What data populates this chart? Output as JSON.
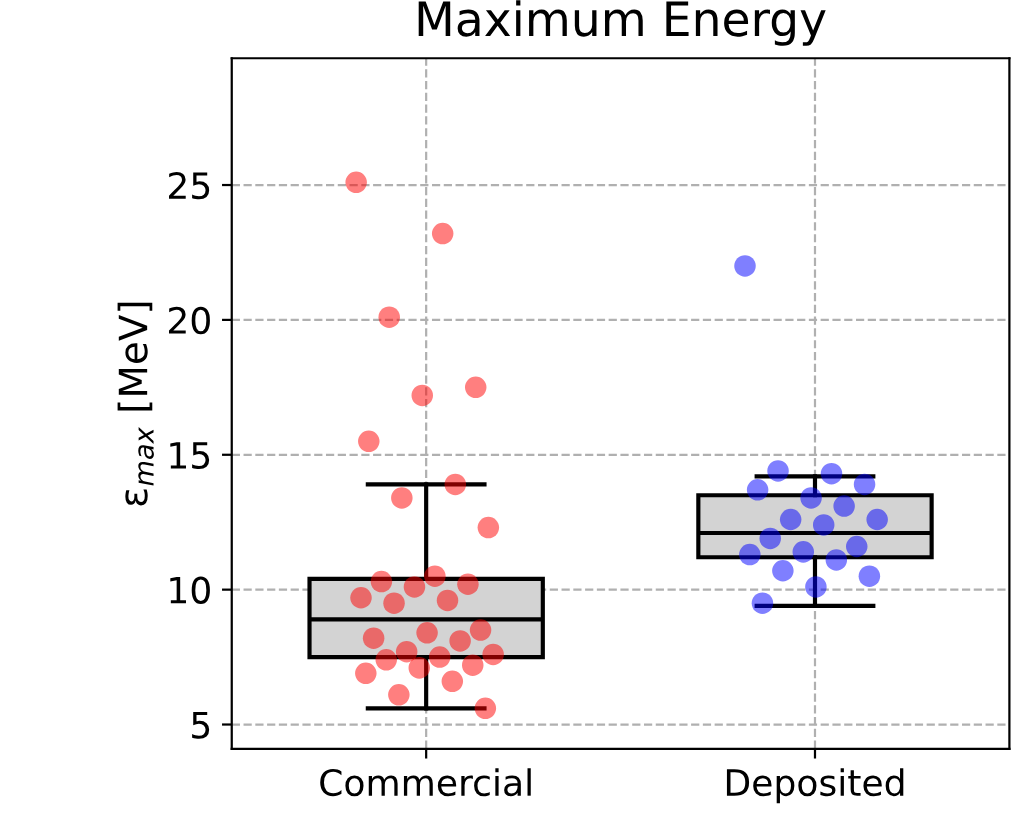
{
  "chart_data": {
    "type": "box",
    "title": "Maximum Energy",
    "ylabel": "ε$_{max}$ [MeV]",
    "categories": [
      "Commercial",
      "Deposited"
    ],
    "boxes": [
      {
        "low": 5.6,
        "q1": 7.5,
        "median": 8.9,
        "q3": 10.4,
        "high": 13.9
      },
      {
        "low": 9.4,
        "q1": 11.2,
        "median": 12.1,
        "q3": 13.5,
        "high": 14.2
      }
    ],
    "color": "#d3d3d3",
    "ylim": [
      4.1,
      29.7
    ],
    "yticks": [
      5,
      10,
      15,
      20,
      25
    ],
    "grid": true,
    "line_style": "dashed",
    "series": [
      {
        "type": "scatter",
        "color": "#ff0000",
        "x": [
          "Commercial",
          "Commercial",
          "Commercial",
          "Commercial",
          "Commercial",
          "Commercial",
          "Commercial",
          "Commercial",
          "Commercial",
          "Commercial",
          "Commercial",
          "Commercial",
          "Commercial",
          "Commercial",
          "Commercial",
          "Commercial",
          "Commercial",
          "Commercial",
          "Commercial",
          "Commercial",
          "Commercial",
          "Commercial",
          "Commercial",
          "Commercial",
          "Commercial",
          "Commercial",
          "Commercial",
          "Commercial",
          "Commercial",
          "Commercial"
        ],
        "values": [
          25.1,
          23.2,
          20.1,
          17.5,
          17.2,
          15.5,
          13.9,
          13.4,
          12.3,
          10.5,
          10.3,
          10.2,
          10.1,
          9.7,
          9.6,
          9.5,
          8.5,
          8.4,
          8.2,
          8.1,
          7.7,
          7.6,
          7.5,
          7.4,
          7.2,
          7.1,
          6.9,
          6.6,
          6.1,
          5.6
        ]
      },
      {
        "type": "scatter",
        "color": "#0000ff",
        "x": [
          "Deposited",
          "Deposited",
          "Deposited",
          "Deposited",
          "Deposited",
          "Deposited",
          "Deposited",
          "Deposited",
          "Deposited",
          "Deposited",
          "Deposited",
          "Deposited",
          "Deposited",
          "Deposited",
          "Deposited",
          "Deposited",
          "Deposited",
          "Deposited",
          "Deposited"
        ],
        "values": [
          22.0,
          14.3,
          14.4,
          13.9,
          13.4,
          13.7,
          13.1,
          12.6,
          12.6,
          12.4,
          11.9,
          11.6,
          11.4,
          11.3,
          11.1,
          10.7,
          10.5,
          10.1,
          9.5
        ]
      }
    ]
  }
}
